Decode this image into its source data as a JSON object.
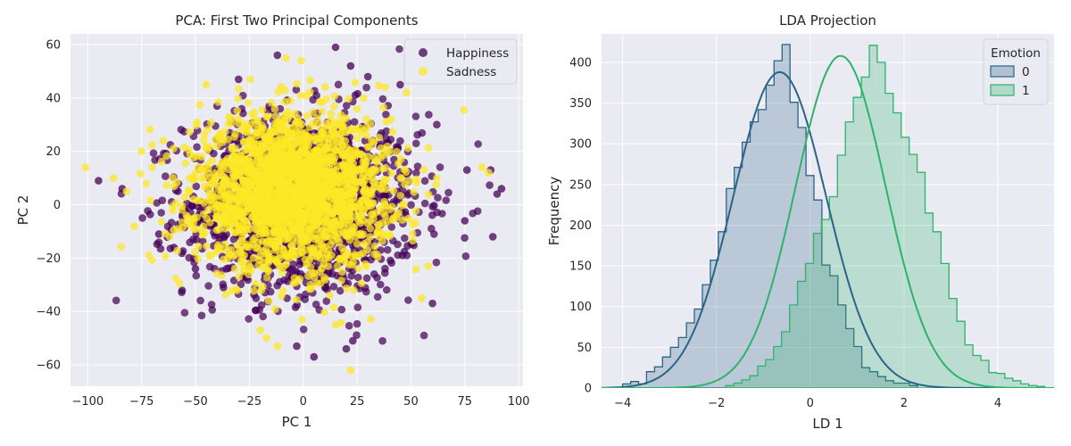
{
  "colors": {
    "panel_bg": "#eaeaf2",
    "grid": "#ffffff",
    "happiness": "#440154",
    "sadness": "#fde725",
    "lda_class0": "#2a6587",
    "lda_class1": "#2fb26c"
  },
  "chart_data": [
    {
      "type": "scatter",
      "title": "PCA: First Two Principal Components",
      "xlabel": "PC 1",
      "ylabel": "PC 2",
      "xlim": [
        -108,
        102
      ],
      "ylim": [
        -68,
        64
      ],
      "xticks": [
        -100,
        -75,
        -50,
        -25,
        0,
        25,
        50,
        75,
        100
      ],
      "yticks": [
        -60,
        -40,
        -20,
        0,
        20,
        40,
        60
      ],
      "xtick_labels": [
        "−100",
        "−75",
        "−50",
        "−25",
        "0",
        "25",
        "50",
        "75",
        "100"
      ],
      "ytick_labels": [
        "−60",
        "−40",
        "−20",
        "0",
        "20",
        "40",
        "60"
      ],
      "grid": true,
      "legend": {
        "placement": "top-right",
        "entries": [
          "Happiness",
          "Sadness"
        ]
      },
      "series": [
        {
          "name": "Happiness",
          "color": "#440154",
          "distribution": {
            "center": [
              0,
              0
            ],
            "sd": [
              27,
              17
            ]
          },
          "notable_points": [
            [
              15,
              59
            ],
            [
              22,
              52
            ],
            [
              -12,
              56
            ],
            [
              87,
              13
            ],
            [
              92,
              6
            ],
            [
              90,
              4
            ],
            [
              -95,
              9
            ],
            [
              88,
              -12
            ],
            [
              76,
              13
            ],
            [
              75,
              -6
            ],
            [
              60,
              -37
            ],
            [
              23,
              -51
            ],
            [
              20,
              -54
            ],
            [
              5,
              -57
            ],
            [
              -3,
              -53
            ],
            [
              -37,
              -31
            ],
            [
              -50,
              -24
            ],
            [
              -60,
              -16
            ],
            [
              -67,
              -11
            ],
            [
              -84,
              6
            ],
            [
              45,
              45
            ],
            [
              30,
              48
            ],
            [
              -30,
              47
            ],
            [
              -40,
              37
            ],
            [
              62,
              30
            ]
          ]
        },
        {
          "name": "Sadness",
          "color": "#fde725",
          "distribution": {
            "center": [
              -5,
              5
            ],
            "sd": [
              22,
              14
            ]
          },
          "notable_points": [
            [
              -101,
              14
            ],
            [
              -88,
              10
            ],
            [
              -82,
              5
            ],
            [
              -70,
              14
            ],
            [
              -65,
              24
            ],
            [
              -58,
              -9
            ],
            [
              -62,
              -12
            ],
            [
              22,
              -62
            ],
            [
              -17,
              -50
            ],
            [
              -20,
              -47
            ],
            [
              -12,
              -53
            ],
            [
              -16,
              -36
            ],
            [
              -1,
              54
            ],
            [
              -8,
              55
            ],
            [
              58,
              -23
            ],
            [
              55,
              -35
            ],
            [
              48,
              42
            ],
            [
              38,
              44
            ],
            [
              83,
              14
            ],
            [
              86,
              12
            ],
            [
              -75,
              20
            ],
            [
              -45,
              45
            ],
            [
              40,
              20
            ],
            [
              15,
              -45
            ],
            [
              -35,
              -20
            ]
          ]
        }
      ]
    },
    {
      "type": "histogram",
      "title": "LDA Projection",
      "xlabel": "LD 1",
      "ylabel": "Frequency",
      "xlim": [
        -4.45,
        5.2
      ],
      "ylim": [
        0,
        435
      ],
      "xticks": [
        -4,
        -2,
        0,
        2,
        4
      ],
      "yticks": [
        0,
        50,
        100,
        150,
        200,
        250,
        300,
        350,
        400
      ],
      "xtick_labels": [
        "−4",
        "−2",
        "0",
        "2",
        "4"
      ],
      "ytick_labels": [
        "0",
        "50",
        "100",
        "150",
        "200",
        "250",
        "300",
        "350",
        "400"
      ],
      "grid": true,
      "element": "step",
      "kde": true,
      "legend": {
        "title": "Emotion",
        "placement": "top-right",
        "entries": [
          "0",
          "1"
        ]
      },
      "series": [
        {
          "name": "0",
          "color": "#2a6587",
          "bin_start": -4.0,
          "bin_width": 0.17,
          "counts": [
            5,
            8,
            5,
            20,
            26,
            38,
            50,
            62,
            80,
            97,
            127,
            157,
            192,
            245,
            271,
            302,
            327,
            342,
            372,
            402,
            422,
            351,
            320,
            261,
            231,
            151,
            138,
            102,
            73,
            51,
            25,
            20,
            14,
            9,
            6,
            6,
            3
          ],
          "kde": {
            "mean": -0.65,
            "peak": 388,
            "sd": 0.99
          }
        },
        {
          "name": "1",
          "color": "#2fb26c",
          "bin_start": -1.8,
          "bin_width": 0.17,
          "counts": [
            3,
            6,
            10,
            15,
            27,
            35,
            51,
            69,
            102,
            131,
            153,
            190,
            207,
            235,
            286,
            327,
            357,
            382,
            421,
            400,
            362,
            338,
            308,
            287,
            265,
            215,
            192,
            153,
            110,
            82,
            53,
            40,
            34,
            19,
            18,
            12,
            9,
            5,
            3,
            2
          ],
          "kde": {
            "mean": 0.65,
            "peak": 408,
            "sd": 0.96
          }
        }
      ]
    }
  ]
}
